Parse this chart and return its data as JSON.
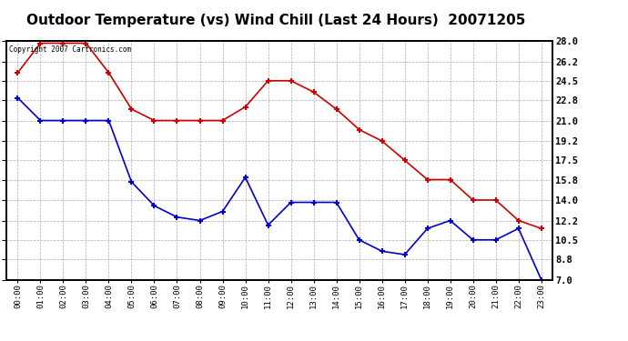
{
  "title": "Outdoor Temperature (vs) Wind Chill (Last 24 Hours)  20071205",
  "copyright_text": "Copyright 2007 Cartronics.com",
  "x_labels": [
    "00:00",
    "01:00",
    "02:00",
    "03:00",
    "04:00",
    "05:00",
    "06:00",
    "07:00",
    "08:00",
    "09:00",
    "10:00",
    "11:00",
    "12:00",
    "13:00",
    "14:00",
    "15:00",
    "16:00",
    "17:00",
    "18:00",
    "19:00",
    "20:00",
    "21:00",
    "22:00",
    "23:00"
  ],
  "red_data": [
    25.2,
    27.8,
    27.8,
    27.8,
    25.2,
    22.0,
    21.0,
    21.0,
    21.0,
    21.0,
    22.2,
    24.5,
    24.5,
    23.5,
    22.0,
    20.2,
    19.2,
    17.5,
    15.8,
    15.8,
    14.0,
    14.0,
    12.2,
    11.5
  ],
  "blue_data": [
    23.0,
    21.0,
    21.0,
    21.0,
    21.0,
    15.6,
    13.5,
    12.5,
    12.2,
    13.0,
    16.0,
    11.8,
    13.8,
    13.8,
    13.8,
    10.5,
    9.5,
    9.2,
    11.5,
    12.2,
    10.5,
    10.5,
    11.5,
    7.0
  ],
  "ylim": [
    7.0,
    28.0
  ],
  "yticks": [
    7.0,
    8.8,
    10.5,
    12.2,
    14.0,
    15.8,
    17.5,
    19.2,
    21.0,
    22.8,
    24.5,
    26.2,
    28.0
  ],
  "red_color": "#cc0000",
  "blue_color": "#0000cc",
  "title_fontsize": 11,
  "bg_color": "#ffffff",
  "grid_color": "#aaaaaa",
  "copyright_color": "#000000"
}
